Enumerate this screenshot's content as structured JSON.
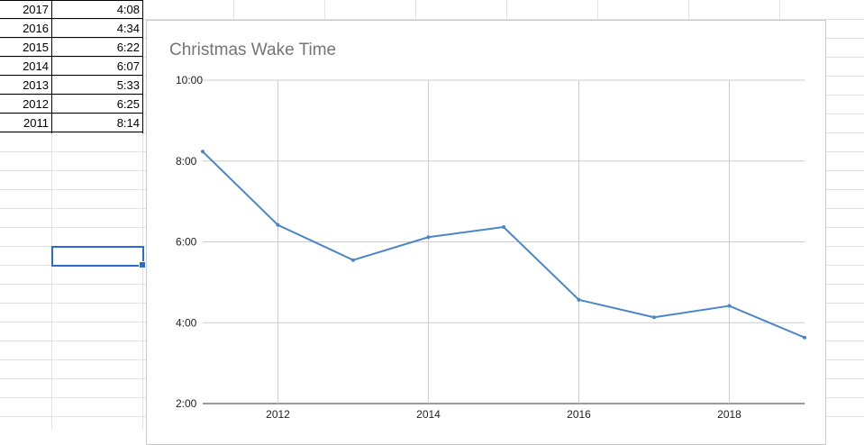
{
  "sheet": {
    "rows": [
      {
        "year": "2017",
        "time": "4:08"
      },
      {
        "year": "2016",
        "time": "4:34"
      },
      {
        "year": "2015",
        "time": "6:22"
      },
      {
        "year": "2014",
        "time": "6:07"
      },
      {
        "year": "2013",
        "time": "5:33"
      },
      {
        "year": "2012",
        "time": "6:25"
      },
      {
        "year": "2011",
        "time": "8:14"
      }
    ]
  },
  "chart_data": {
    "type": "line",
    "title": "Christmas Wake Time",
    "xlabel": "",
    "ylabel": "",
    "x": [
      2011,
      2012,
      2013,
      2014,
      2015,
      2016,
      2017,
      2018,
      2019
    ],
    "series": [
      {
        "values": [
          "8:14",
          "6:25",
          "5:33",
          "6:07",
          "6:22",
          "4:34",
          "4:08",
          "4:25",
          "3:38"
        ]
      }
    ],
    "ylim": [
      "2:00",
      "10:00"
    ],
    "y_ticks": [
      "2:00",
      "4:00",
      "6:00",
      "8:00",
      "10:00"
    ],
    "x_ticks": [
      "2012",
      "2014",
      "2016",
      "2018"
    ],
    "grid": true,
    "legend": "none",
    "line_color": "#4a86c8"
  }
}
